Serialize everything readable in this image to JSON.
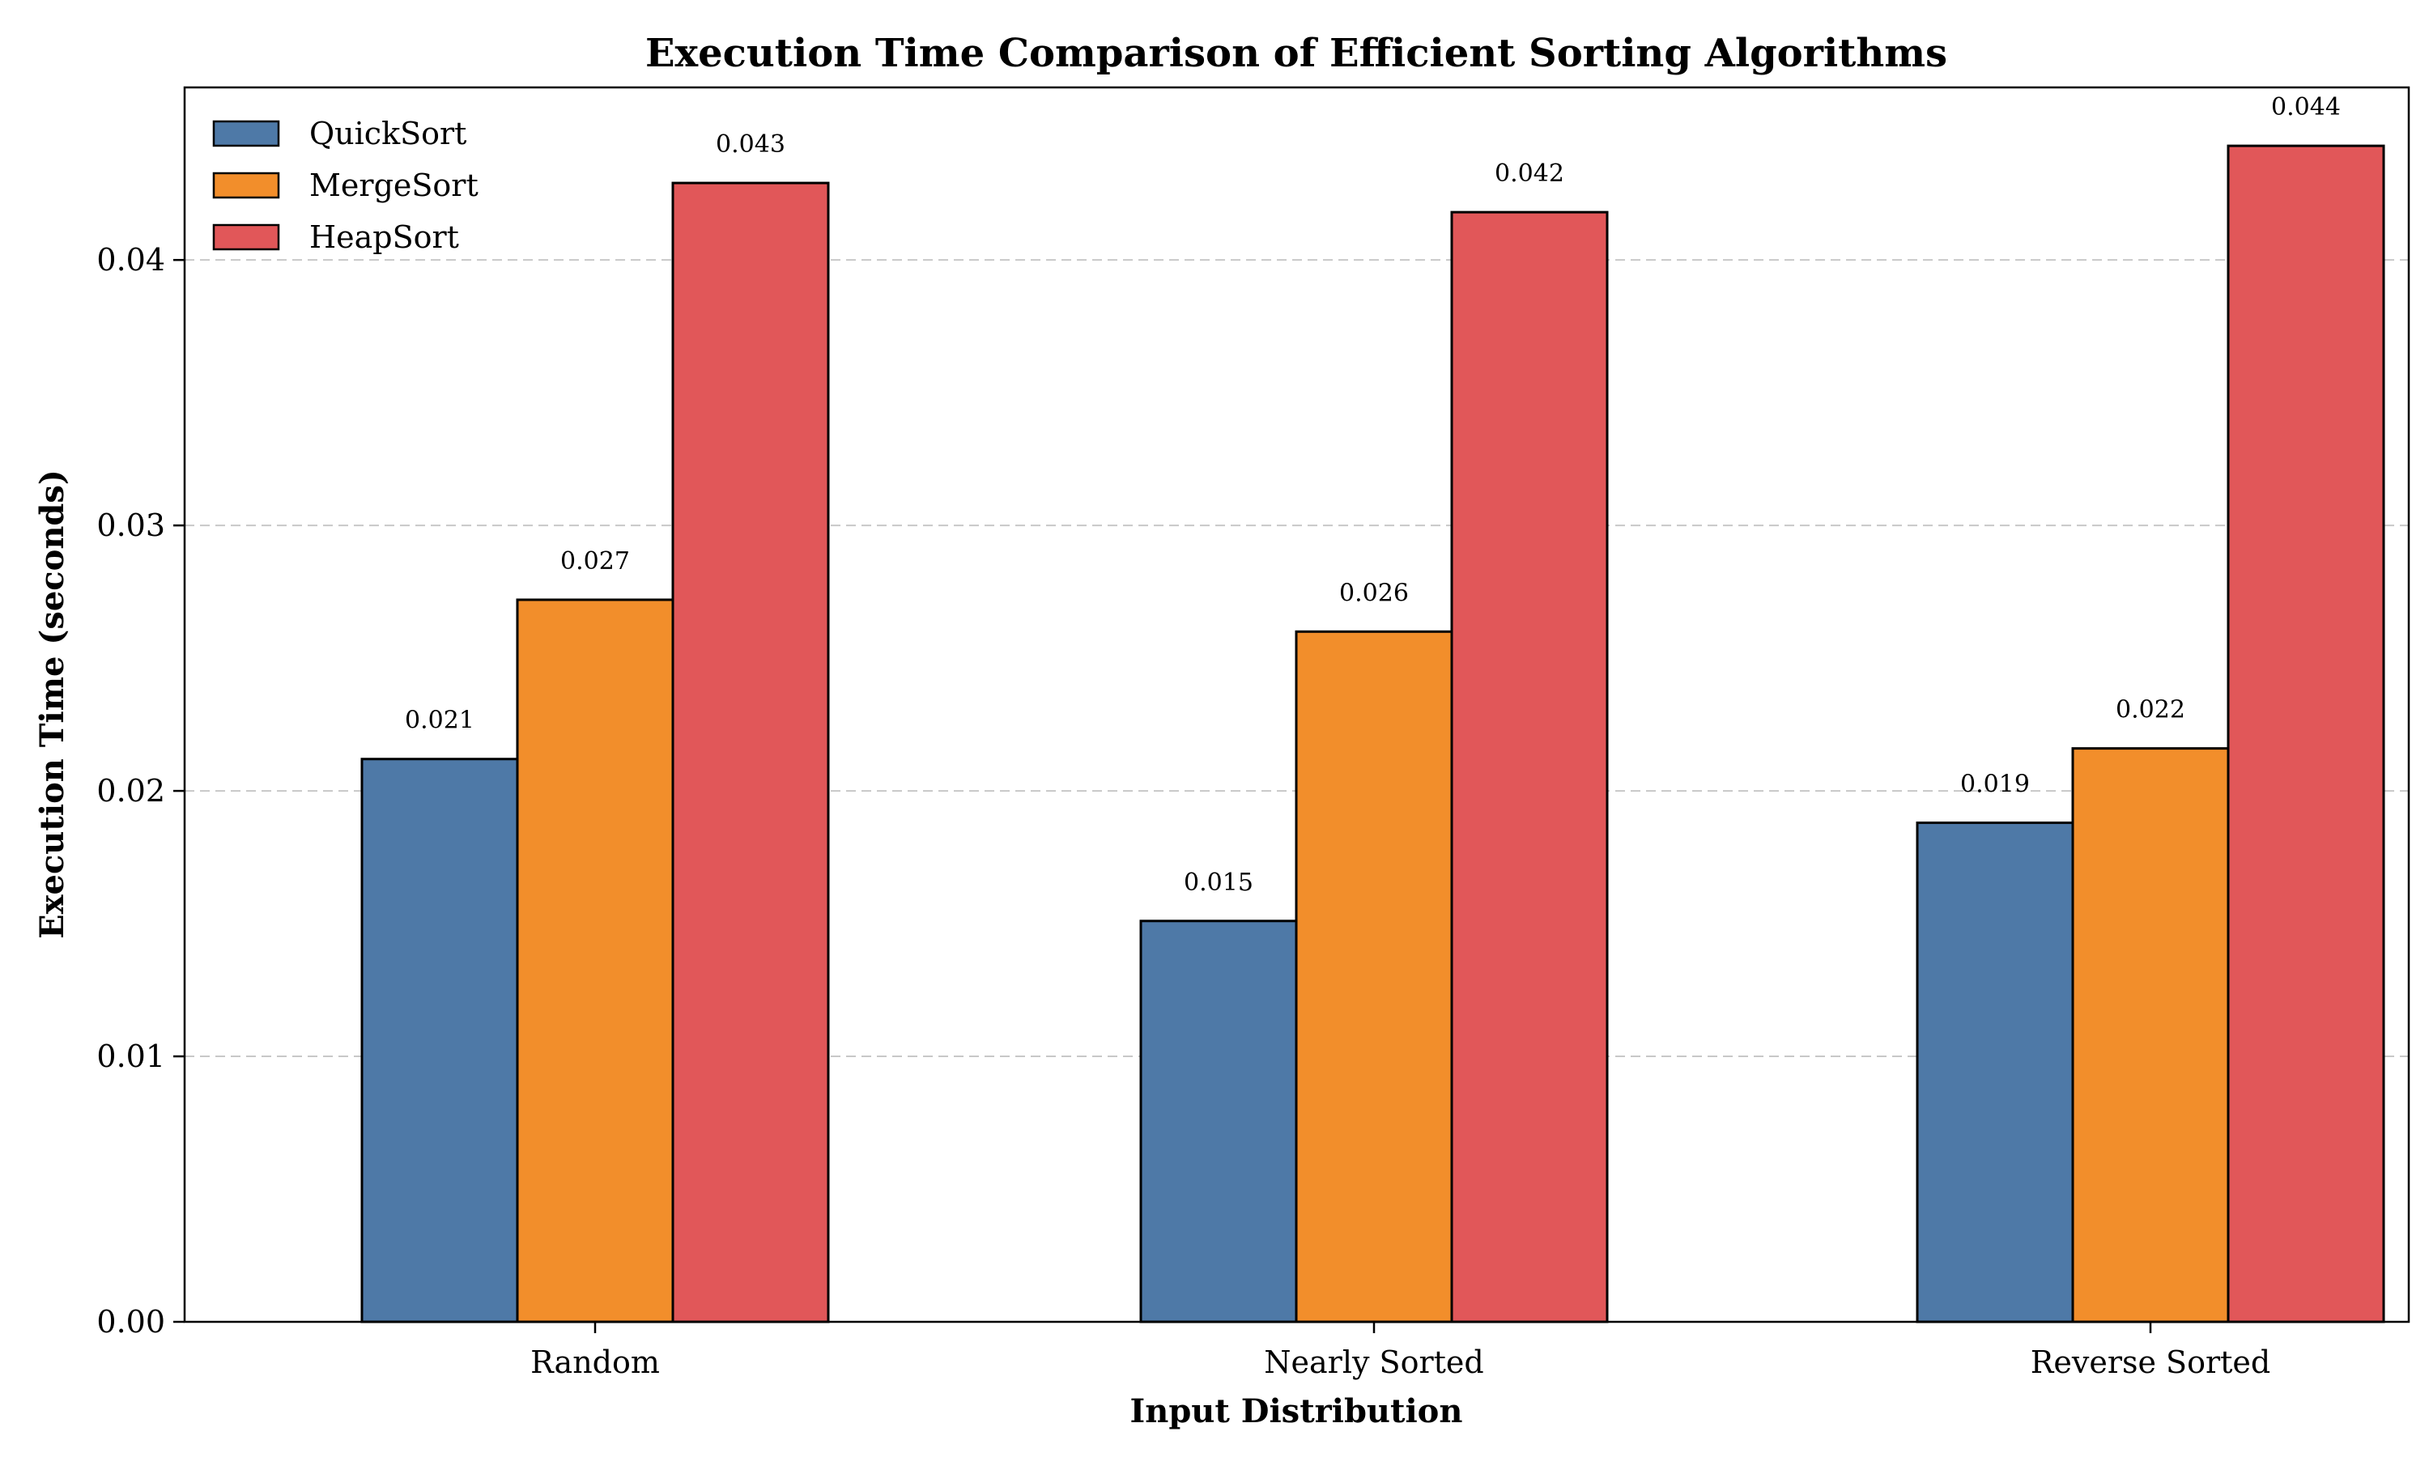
{
  "chart_data": {
    "type": "bar",
    "title": "Execution Time Comparison of Efficient Sorting Algorithms",
    "xlabel": "Input Distribution",
    "ylabel": "Execution Time (seconds)",
    "categories": [
      "Random",
      "Nearly Sorted",
      "Reverse Sorted"
    ],
    "series": [
      {
        "name": "QuickSort",
        "values": [
          0.0212,
          0.0151,
          0.0188
        ],
        "labels": [
          "0.021",
          "0.015",
          "0.019"
        ],
        "color": "#4e79a7"
      },
      {
        "name": "MergeSort",
        "values": [
          0.0272,
          0.026,
          0.0216
        ],
        "labels": [
          "0.027",
          "0.026",
          "0.022"
        ],
        "color": "#f28e2b"
      },
      {
        "name": "HeapSort",
        "values": [
          0.0429,
          0.0418,
          0.0443
        ],
        "labels": [
          "0.043",
          "0.042",
          "0.044"
        ],
        "color": "#e15759"
      }
    ],
    "ylim": [
      0,
      0.0465
    ],
    "yticks": [
      0,
      0.01,
      0.02,
      0.03,
      0.04
    ],
    "ytick_labels": [
      "0.00",
      "0.01",
      "0.02",
      "0.03",
      "0.04"
    ],
    "grid": "y-dashed",
    "legend_position": "top-left"
  }
}
